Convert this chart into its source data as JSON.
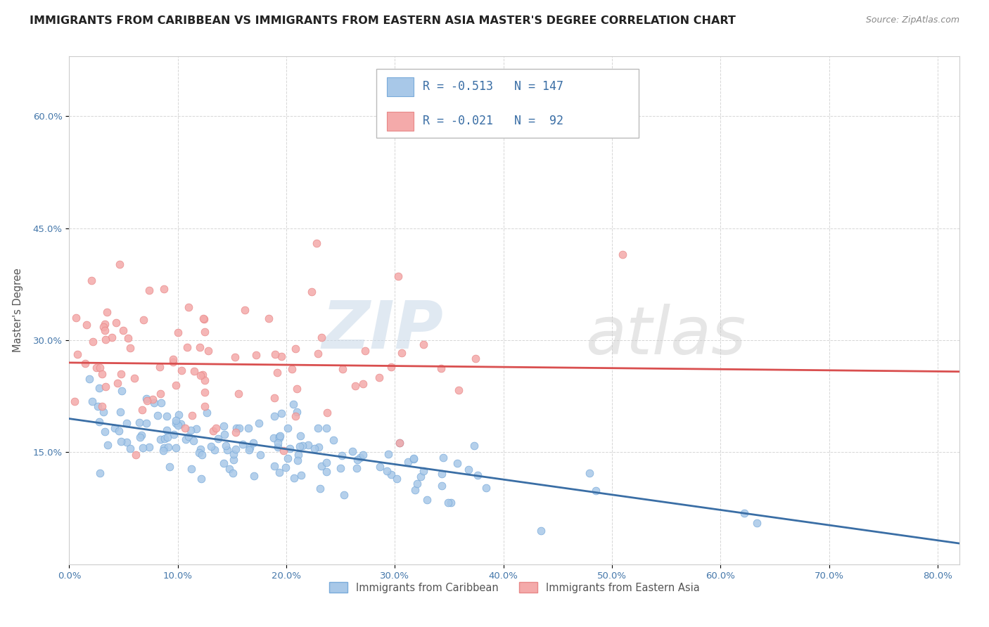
{
  "title": "IMMIGRANTS FROM CARIBBEAN VS IMMIGRANTS FROM EASTERN ASIA MASTER'S DEGREE CORRELATION CHART",
  "source_text": "Source: ZipAtlas.com",
  "ylabel": "Master's Degree",
  "xlim": [
    0.0,
    0.82
  ],
  "ylim": [
    0.0,
    0.68
  ],
  "yticks": [
    0.15,
    0.3,
    0.45,
    0.6
  ],
  "xticks": [
    0.0,
    0.1,
    0.2,
    0.3,
    0.4,
    0.5,
    0.6,
    0.7,
    0.8
  ],
  "series": [
    {
      "label": "Immigrants from Caribbean",
      "color": "#A8C8E8",
      "edge_color": "#7AABDA",
      "line_color": "#3A6EA5",
      "R": -0.513,
      "N": 147,
      "trend_x": [
        0.0,
        0.82
      ],
      "trend_y": [
        0.195,
        0.028
      ]
    },
    {
      "label": "Immigrants from Eastern Asia",
      "color": "#F4AAAA",
      "edge_color": "#E88888",
      "line_color": "#D94F4F",
      "R": -0.021,
      "N": 92,
      "trend_x": [
        0.0,
        0.82
      ],
      "trend_y": [
        0.27,
        0.258
      ]
    }
  ],
  "legend_entries": [
    {
      "label": "Immigrants from Caribbean",
      "color": "#A8C8E8",
      "edge_color": "#7AABDA"
    },
    {
      "label": "Immigrants from Eastern Asia",
      "color": "#F4AAAA",
      "edge_color": "#E88888"
    }
  ],
  "watermark_zip": "ZIP",
  "watermark_atlas": "atlas",
  "background_color": "#FFFFFF",
  "grid_color": "#CCCCCC",
  "title_color": "#222222",
  "title_fontsize": 11.5,
  "axis_label_color": "#555555",
  "tick_color": "#4477AA",
  "source_color": "#888888"
}
